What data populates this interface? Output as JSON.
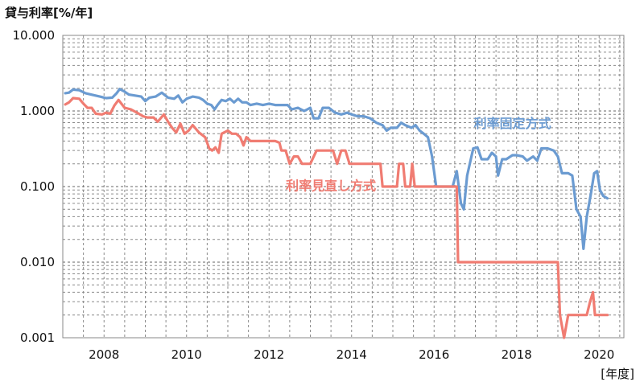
{
  "chart_data": {
    "type": "line",
    "ylabel": "貸与利率[%/年]",
    "xlabel": "[年度]",
    "yscale": "log",
    "ylim": [
      0.001,
      10
    ],
    "xlim": [
      2007.0,
      2020.6
    ],
    "grid": true,
    "y_ticks": [
      {
        "value": 10,
        "label": "10.000"
      },
      {
        "value": 1,
        "label": "1.000"
      },
      {
        "value": 0.1,
        "label": "0.100"
      },
      {
        "value": 0.01,
        "label": "0.010"
      },
      {
        "value": 0.001,
        "label": "0.001"
      }
    ],
    "x_ticks": [
      {
        "value": 2008,
        "label": "2008"
      },
      {
        "value": 2010,
        "label": "2010"
      },
      {
        "value": 2012,
        "label": "2012"
      },
      {
        "value": 2014,
        "label": "2014"
      },
      {
        "value": 2016,
        "label": "2016"
      },
      {
        "value": 2018,
        "label": "2018"
      },
      {
        "value": 2020,
        "label": "2020"
      }
    ],
    "series": [
      {
        "name": "利率固定方式",
        "color": "#6b9bd1",
        "step": false,
        "points": [
          [
            2007.06,
            1.72
          ],
          [
            2007.15,
            1.75
          ],
          [
            2007.25,
            1.92
          ],
          [
            2007.4,
            1.88
          ],
          [
            2007.55,
            1.72
          ],
          [
            2007.75,
            1.62
          ],
          [
            2007.9,
            1.55
          ],
          [
            2008.05,
            1.48
          ],
          [
            2008.2,
            1.5
          ],
          [
            2008.3,
            1.7
          ],
          [
            2008.38,
            1.95
          ],
          [
            2008.5,
            1.8
          ],
          [
            2008.6,
            1.65
          ],
          [
            2008.75,
            1.6
          ],
          [
            2008.9,
            1.55
          ],
          [
            2009.0,
            1.35
          ],
          [
            2009.1,
            1.5
          ],
          [
            2009.25,
            1.55
          ],
          [
            2009.4,
            1.75
          ],
          [
            2009.55,
            1.5
          ],
          [
            2009.7,
            1.45
          ],
          [
            2009.8,
            1.6
          ],
          [
            2009.9,
            1.3
          ],
          [
            2010.0,
            1.45
          ],
          [
            2010.15,
            1.55
          ],
          [
            2010.3,
            1.5
          ],
          [
            2010.4,
            1.4
          ],
          [
            2010.5,
            1.25
          ],
          [
            2010.6,
            1.2
          ],
          [
            2010.68,
            1.05
          ],
          [
            2010.75,
            1.2
          ],
          [
            2010.85,
            1.4
          ],
          [
            2010.95,
            1.35
          ],
          [
            2011.05,
            1.45
          ],
          [
            2011.15,
            1.3
          ],
          [
            2011.25,
            1.45
          ],
          [
            2011.35,
            1.3
          ],
          [
            2011.45,
            1.3
          ],
          [
            2011.55,
            1.2
          ],
          [
            2011.7,
            1.25
          ],
          [
            2011.85,
            1.2
          ],
          [
            2012.0,
            1.25
          ],
          [
            2012.15,
            1.2
          ],
          [
            2012.3,
            1.2
          ],
          [
            2012.45,
            1.2
          ],
          [
            2012.55,
            1.05
          ],
          [
            2012.7,
            1.1
          ],
          [
            2012.85,
            1.0
          ],
          [
            2013.0,
            1.1
          ],
          [
            2013.08,
            0.8
          ],
          [
            2013.2,
            0.8
          ],
          [
            2013.3,
            1.1
          ],
          [
            2013.45,
            1.1
          ],
          [
            2013.6,
            0.95
          ],
          [
            2013.75,
            0.9
          ],
          [
            2013.9,
            0.95
          ],
          [
            2014.0,
            0.9
          ],
          [
            2014.15,
            0.85
          ],
          [
            2014.3,
            0.85
          ],
          [
            2014.45,
            0.8
          ],
          [
            2014.6,
            0.7
          ],
          [
            2014.75,
            0.65
          ],
          [
            2014.85,
            0.55
          ],
          [
            2014.95,
            0.6
          ],
          [
            2015.1,
            0.6
          ],
          [
            2015.2,
            0.7
          ],
          [
            2015.3,
            0.65
          ],
          [
            2015.45,
            0.6
          ],
          [
            2015.55,
            0.65
          ],
          [
            2015.65,
            0.55
          ],
          [
            2015.75,
            0.5
          ],
          [
            2015.85,
            0.45
          ],
          [
            2015.95,
            0.25
          ],
          [
            2016.05,
            0.1
          ],
          [
            2016.2,
            0.1
          ],
          [
            2016.35,
            0.1
          ],
          [
            2016.45,
            0.1
          ],
          [
            2016.55,
            0.16
          ],
          [
            2016.65,
            0.06
          ],
          [
            2016.72,
            0.05
          ],
          [
            2016.8,
            0.14
          ],
          [
            2016.95,
            0.32
          ],
          [
            2017.05,
            0.33
          ],
          [
            2017.15,
            0.23
          ],
          [
            2017.3,
            0.23
          ],
          [
            2017.4,
            0.28
          ],
          [
            2017.5,
            0.25
          ],
          [
            2017.55,
            0.14
          ],
          [
            2017.65,
            0.23
          ],
          [
            2017.75,
            0.23
          ],
          [
            2017.9,
            0.26
          ],
          [
            2018.0,
            0.26
          ],
          [
            2018.15,
            0.25
          ],
          [
            2018.25,
            0.22
          ],
          [
            2018.4,
            0.25
          ],
          [
            2018.5,
            0.22
          ],
          [
            2018.6,
            0.32
          ],
          [
            2018.75,
            0.32
          ],
          [
            2018.9,
            0.3
          ],
          [
            2019.0,
            0.25
          ],
          [
            2019.1,
            0.15
          ],
          [
            2019.25,
            0.15
          ],
          [
            2019.35,
            0.14
          ],
          [
            2019.45,
            0.05
          ],
          [
            2019.55,
            0.04
          ],
          [
            2019.62,
            0.015
          ],
          [
            2019.7,
            0.04
          ],
          [
            2019.8,
            0.08
          ],
          [
            2019.88,
            0.15
          ],
          [
            2019.95,
            0.16
          ],
          [
            2020.02,
            0.09
          ],
          [
            2020.1,
            0.075
          ],
          [
            2020.2,
            0.07
          ]
        ]
      },
      {
        "name": "利率見直し方式",
        "color": "#f07c72",
        "step": false,
        "points": [
          [
            2007.06,
            1.22
          ],
          [
            2007.15,
            1.3
          ],
          [
            2007.25,
            1.48
          ],
          [
            2007.4,
            1.45
          ],
          [
            2007.5,
            1.25
          ],
          [
            2007.6,
            1.1
          ],
          [
            2007.7,
            1.1
          ],
          [
            2007.8,
            0.92
          ],
          [
            2007.95,
            0.9
          ],
          [
            2008.05,
            0.95
          ],
          [
            2008.15,
            0.92
          ],
          [
            2008.25,
            1.18
          ],
          [
            2008.35,
            1.4
          ],
          [
            2008.5,
            1.1
          ],
          [
            2008.65,
            1.05
          ],
          [
            2008.8,
            0.95
          ],
          [
            2008.95,
            0.85
          ],
          [
            2009.05,
            0.82
          ],
          [
            2009.2,
            0.82
          ],
          [
            2009.3,
            0.72
          ],
          [
            2009.45,
            0.9
          ],
          [
            2009.55,
            0.72
          ],
          [
            2009.65,
            0.6
          ],
          [
            2009.75,
            0.52
          ],
          [
            2009.85,
            0.68
          ],
          [
            2009.95,
            0.5
          ],
          [
            2010.05,
            0.55
          ],
          [
            2010.15,
            0.65
          ],
          [
            2010.3,
            0.52
          ],
          [
            2010.45,
            0.45
          ],
          [
            2010.55,
            0.32
          ],
          [
            2010.62,
            0.3
          ],
          [
            2010.7,
            0.33
          ],
          [
            2010.78,
            0.28
          ],
          [
            2010.85,
            0.5
          ],
          [
            2011.0,
            0.55
          ],
          [
            2011.1,
            0.5
          ],
          [
            2011.2,
            0.5
          ],
          [
            2011.3,
            0.45
          ],
          [
            2011.38,
            0.35
          ],
          [
            2011.45,
            0.45
          ],
          [
            2011.55,
            0.4
          ],
          [
            2011.7,
            0.4
          ],
          [
            2011.85,
            0.4
          ],
          [
            2012.0,
            0.4
          ],
          [
            2012.15,
            0.4
          ],
          [
            2012.25,
            0.38
          ],
          [
            2012.3,
            0.3
          ],
          [
            2012.4,
            0.3
          ],
          [
            2012.5,
            0.2
          ],
          [
            2012.6,
            0.25
          ],
          [
            2012.7,
            0.25
          ],
          [
            2012.8,
            0.2
          ],
          [
            2013.0,
            0.2
          ],
          [
            2013.15,
            0.3
          ],
          [
            2013.3,
            0.3
          ],
          [
            2013.45,
            0.3
          ],
          [
            2013.55,
            0.3
          ],
          [
            2013.65,
            0.2
          ],
          [
            2013.75,
            0.3
          ],
          [
            2013.85,
            0.3
          ],
          [
            2013.95,
            0.2
          ],
          [
            2014.1,
            0.2
          ],
          [
            2014.3,
            0.2
          ],
          [
            2014.5,
            0.2
          ],
          [
            2014.7,
            0.2
          ],
          [
            2014.75,
            0.1
          ],
          [
            2014.9,
            0.1
          ],
          [
            2015.1,
            0.1
          ],
          [
            2015.15,
            0.2
          ],
          [
            2015.25,
            0.2
          ],
          [
            2015.3,
            0.1
          ],
          [
            2015.42,
            0.1
          ],
          [
            2015.47,
            0.2
          ],
          [
            2015.53,
            0.1
          ],
          [
            2015.7,
            0.1
          ],
          [
            2016.0,
            0.1
          ],
          [
            2016.3,
            0.1
          ],
          [
            2016.48,
            0.1
          ],
          [
            2016.55,
            0.1
          ],
          [
            2016.58,
            0.01
          ],
          [
            2016.9,
            0.01
          ],
          [
            2017.3,
            0.01
          ],
          [
            2017.7,
            0.01
          ],
          [
            2018.1,
            0.01
          ],
          [
            2018.5,
            0.01
          ],
          [
            2018.9,
            0.01
          ],
          [
            2019.0,
            0.01
          ],
          [
            2019.05,
            0.002
          ],
          [
            2019.15,
            0.001
          ],
          [
            2019.25,
            0.002
          ],
          [
            2019.45,
            0.002
          ],
          [
            2019.6,
            0.002
          ],
          [
            2019.7,
            0.002
          ],
          [
            2019.78,
            0.003
          ],
          [
            2019.85,
            0.004
          ],
          [
            2019.9,
            0.002
          ],
          [
            2020.05,
            0.002
          ],
          [
            2020.2,
            0.002
          ]
        ]
      }
    ],
    "annotations": [
      {
        "series_index": 0,
        "text": "利率固定方式",
        "at": [
          2017.9,
          0.6
        ]
      },
      {
        "series_index": 1,
        "text": "利率見直し方式",
        "at": [
          2013.5,
          0.09
        ]
      }
    ]
  }
}
